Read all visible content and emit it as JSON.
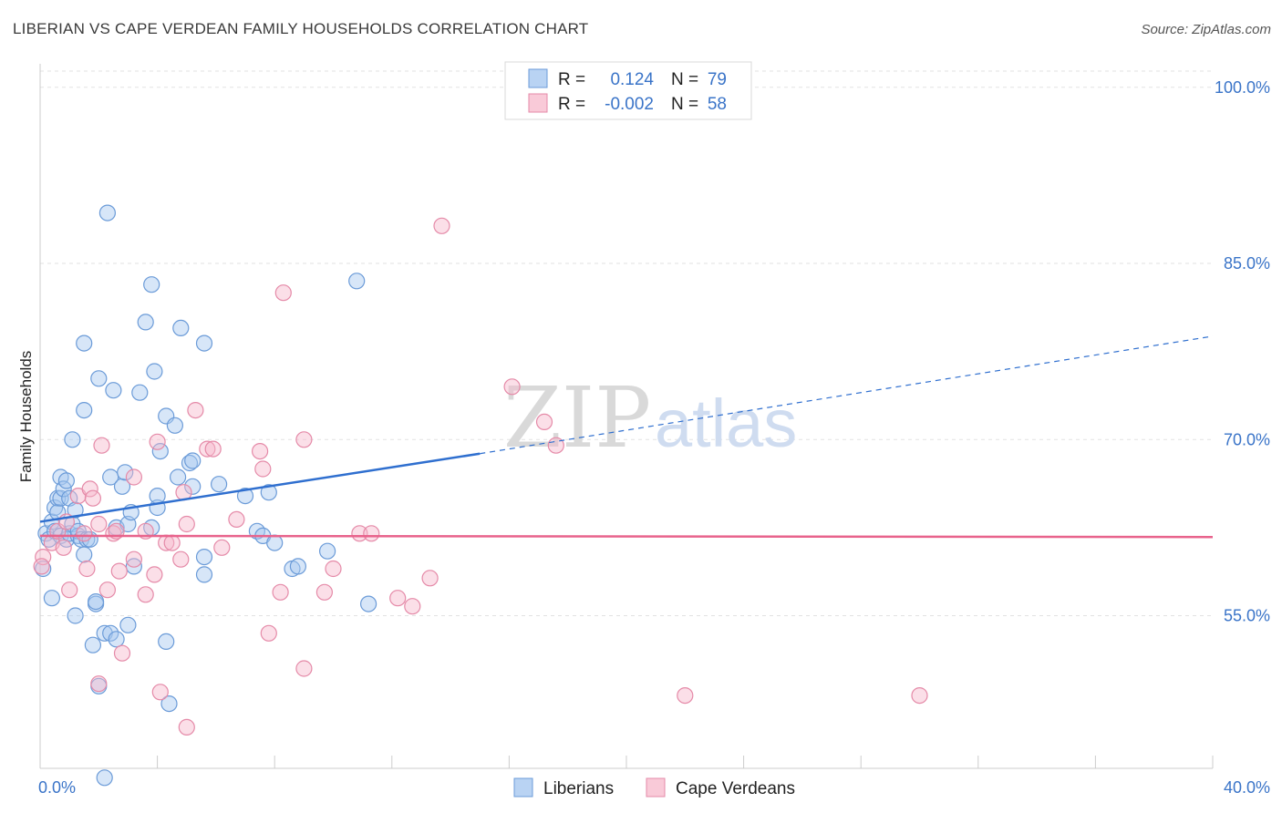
{
  "title": "LIBERIAN VS CAPE VERDEAN FAMILY HOUSEHOLDS CORRELATION CHART",
  "source": "Source: ZipAtlas.com",
  "watermark": {
    "zip": "ZIP",
    "atlas": "atlas"
  },
  "legend": {
    "r_label": "R =",
    "n_label": "N =",
    "rows": [
      {
        "r": "0.124",
        "n": "79",
        "color": "#a7c8f0"
      },
      {
        "r": "-0.002",
        "n": "58",
        "color": "#f6b9cc"
      }
    ]
  },
  "chart_data": {
    "type": "scatter",
    "title": "LIBERIAN VS CAPE VERDEAN FAMILY HOUSEHOLDS CORRELATION CHART",
    "xlabel": "",
    "ylabel": "Family Households",
    "xlim": [
      0,
      40
    ],
    "ylim": [
      42,
      102
    ],
    "x_tick_labels": [
      {
        "value": 0,
        "label": "0.0%"
      },
      {
        "value": 40,
        "label": "40.0%"
      }
    ],
    "y_ticks": [
      {
        "value": 55,
        "label": "55.0%"
      },
      {
        "value": 70,
        "label": "70.0%"
      },
      {
        "value": 85,
        "label": "85.0%"
      },
      {
        "value": 100,
        "label": "100.0%"
      }
    ],
    "series": [
      {
        "name": "Liberians",
        "color": "#a7c8f0",
        "stroke": "#6b9bd8",
        "trend": {
          "x0": 0,
          "y0": 63.0,
          "x1": 15,
          "y1": 68.8,
          "dash_to_x": 40,
          "dash_to_y": 78.8,
          "color": "#2f6fcf"
        },
        "points": [
          [
            0.2,
            62.0
          ],
          [
            0.3,
            61.5
          ],
          [
            0.4,
            63.0
          ],
          [
            0.4,
            56.5
          ],
          [
            0.5,
            64.2
          ],
          [
            0.5,
            62.2
          ],
          [
            0.6,
            65.0
          ],
          [
            0.6,
            63.8
          ],
          [
            0.7,
            61.8
          ],
          [
            0.7,
            66.8
          ],
          [
            0.7,
            65.0
          ],
          [
            0.8,
            65.8
          ],
          [
            0.9,
            61.5
          ],
          [
            0.9,
            66.5
          ],
          [
            1.0,
            65.0
          ],
          [
            1.0,
            62.0
          ],
          [
            1.1,
            70.0
          ],
          [
            1.1,
            62.8
          ],
          [
            1.2,
            64.0
          ],
          [
            1.2,
            55.0
          ],
          [
            1.3,
            61.8
          ],
          [
            1.3,
            62.2
          ],
          [
            1.4,
            61.5
          ],
          [
            1.5,
            60.2
          ],
          [
            1.5,
            72.5
          ],
          [
            1.5,
            78.2
          ],
          [
            1.6,
            61.5
          ],
          [
            1.7,
            61.5
          ],
          [
            1.8,
            52.5
          ],
          [
            1.9,
            56.0
          ],
          [
            1.9,
            56.2
          ],
          [
            2.0,
            75.2
          ],
          [
            2.0,
            49.0
          ],
          [
            2.2,
            41.2
          ],
          [
            2.2,
            53.5
          ],
          [
            2.3,
            89.3
          ],
          [
            2.4,
            53.5
          ],
          [
            2.4,
            66.8
          ],
          [
            2.5,
            74.2
          ],
          [
            2.6,
            53.0
          ],
          [
            2.6,
            62.5
          ],
          [
            2.8,
            66.0
          ],
          [
            2.9,
            67.2
          ],
          [
            3.0,
            54.2
          ],
          [
            3.0,
            62.8
          ],
          [
            3.1,
            63.8
          ],
          [
            3.2,
            59.2
          ],
          [
            3.4,
            74.0
          ],
          [
            3.6,
            80.0
          ],
          [
            3.8,
            62.5
          ],
          [
            3.8,
            83.2
          ],
          [
            3.9,
            75.8
          ],
          [
            4.0,
            64.2
          ],
          [
            4.0,
            65.2
          ],
          [
            4.1,
            69.0
          ],
          [
            4.3,
            72.0
          ],
          [
            4.3,
            52.8
          ],
          [
            4.4,
            47.5
          ],
          [
            4.6,
            71.2
          ],
          [
            4.7,
            66.8
          ],
          [
            4.8,
            79.5
          ],
          [
            5.1,
            68.0
          ],
          [
            5.2,
            68.2
          ],
          [
            5.2,
            66.0
          ],
          [
            5.6,
            78.2
          ],
          [
            5.6,
            60.0
          ],
          [
            5.6,
            58.5
          ],
          [
            6.1,
            66.2
          ],
          [
            7.0,
            65.2
          ],
          [
            7.4,
            62.2
          ],
          [
            7.6,
            61.8
          ],
          [
            7.8,
            65.5
          ],
          [
            8.0,
            61.2
          ],
          [
            8.6,
            59.0
          ],
          [
            8.8,
            59.2
          ],
          [
            9.8,
            60.5
          ],
          [
            10.8,
            83.5
          ],
          [
            11.2,
            56.0
          ],
          [
            0.1,
            59.0
          ]
        ]
      },
      {
        "name": "Cape Verdeans",
        "color": "#f6b9cc",
        "stroke": "#e58aa8",
        "trend": {
          "x0": 0,
          "y0": 61.8,
          "x1": 40,
          "y1": 61.7,
          "color": "#e8638c"
        },
        "points": [
          [
            0.1,
            60.0
          ],
          [
            0.4,
            61.2
          ],
          [
            0.6,
            62.2
          ],
          [
            0.8,
            60.8
          ],
          [
            0.9,
            63.0
          ],
          [
            1.0,
            57.2
          ],
          [
            1.3,
            65.2
          ],
          [
            1.5,
            62.0
          ],
          [
            1.6,
            59.0
          ],
          [
            1.7,
            65.8
          ],
          [
            1.8,
            65.0
          ],
          [
            2.0,
            62.8
          ],
          [
            2.0,
            49.2
          ],
          [
            2.1,
            69.5
          ],
          [
            2.3,
            57.2
          ],
          [
            2.5,
            62.0
          ],
          [
            2.6,
            62.2
          ],
          [
            2.7,
            58.8
          ],
          [
            2.8,
            51.8
          ],
          [
            3.2,
            59.8
          ],
          [
            3.2,
            66.8
          ],
          [
            3.6,
            62.2
          ],
          [
            3.6,
            56.8
          ],
          [
            3.9,
            58.5
          ],
          [
            4.0,
            69.8
          ],
          [
            4.1,
            48.5
          ],
          [
            4.3,
            61.2
          ],
          [
            4.5,
            61.2
          ],
          [
            4.8,
            59.8
          ],
          [
            4.9,
            65.5
          ],
          [
            5.0,
            62.8
          ],
          [
            5.0,
            45.5
          ],
          [
            5.3,
            72.5
          ],
          [
            5.7,
            69.2
          ],
          [
            5.9,
            69.2
          ],
          [
            6.2,
            60.8
          ],
          [
            6.7,
            63.2
          ],
          [
            7.5,
            69.0
          ],
          [
            7.6,
            67.5
          ],
          [
            7.8,
            53.5
          ],
          [
            8.2,
            57.0
          ],
          [
            8.3,
            82.5
          ],
          [
            9.0,
            70.0
          ],
          [
            9.0,
            50.5
          ],
          [
            9.7,
            57.0
          ],
          [
            10.0,
            59.0
          ],
          [
            10.9,
            62.0
          ],
          [
            11.3,
            62.0
          ],
          [
            12.2,
            56.5
          ],
          [
            12.7,
            55.8
          ],
          [
            13.3,
            58.2
          ],
          [
            13.7,
            88.2
          ],
          [
            16.1,
            74.5
          ],
          [
            17.2,
            71.5
          ],
          [
            17.6,
            69.5
          ],
          [
            22.0,
            48.2
          ],
          [
            30.0,
            48.2
          ],
          [
            0.05,
            59.2
          ]
        ]
      }
    ]
  },
  "bottom_legend": [
    {
      "label": "Liberians",
      "color": "#a7c8f0"
    },
    {
      "label": "Cape Verdeans",
      "color": "#f6b9cc"
    }
  ]
}
